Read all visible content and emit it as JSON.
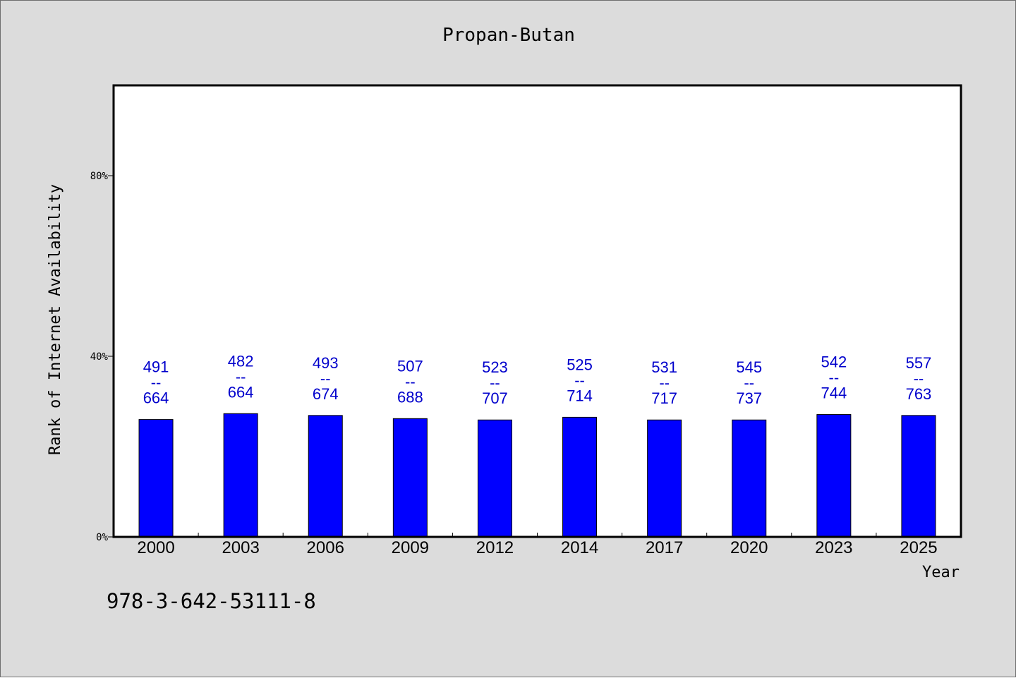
{
  "chart_data": {
    "type": "bar",
    "title": "Propan-Butan",
    "xlabel": "Year",
    "ylabel": "Rank of Internet Availability",
    "categories": [
      "2000",
      "2003",
      "2006",
      "2009",
      "2012",
      "2014",
      "2017",
      "2020",
      "2023",
      "2025"
    ],
    "values": [
      26.0,
      27.3,
      26.9,
      26.2,
      25.9,
      26.5,
      25.9,
      25.9,
      27.1,
      26.9
    ],
    "bar_labels": [
      {
        "top": "491",
        "mid": "--",
        "bottom": "664"
      },
      {
        "top": "482",
        "mid": "--",
        "bottom": "664"
      },
      {
        "top": "493",
        "mid": "--",
        "bottom": "674"
      },
      {
        "top": "507",
        "mid": "--",
        "bottom": "688"
      },
      {
        "top": "523",
        "mid": "--",
        "bottom": "707"
      },
      {
        "top": "525",
        "mid": "--",
        "bottom": "714"
      },
      {
        "top": "531",
        "mid": "--",
        "bottom": "717"
      },
      {
        "top": "545",
        "mid": "--",
        "bottom": "737"
      },
      {
        "top": "542",
        "mid": "--",
        "bottom": "744"
      },
      {
        "top": "557",
        "mid": "--",
        "bottom": "763"
      }
    ],
    "ylim": [
      0,
      100
    ],
    "yticks": [
      0,
      40,
      80
    ],
    "ytick_labels": [
      "0%",
      "40%",
      "80%"
    ],
    "bar_color": "#0000ff",
    "label_color": "#0000cc",
    "background": "#dcdcdc",
    "plot_background": "#ffffff",
    "grid": false,
    "legend": "none"
  },
  "footer_text": "978-3-642-53111-8"
}
